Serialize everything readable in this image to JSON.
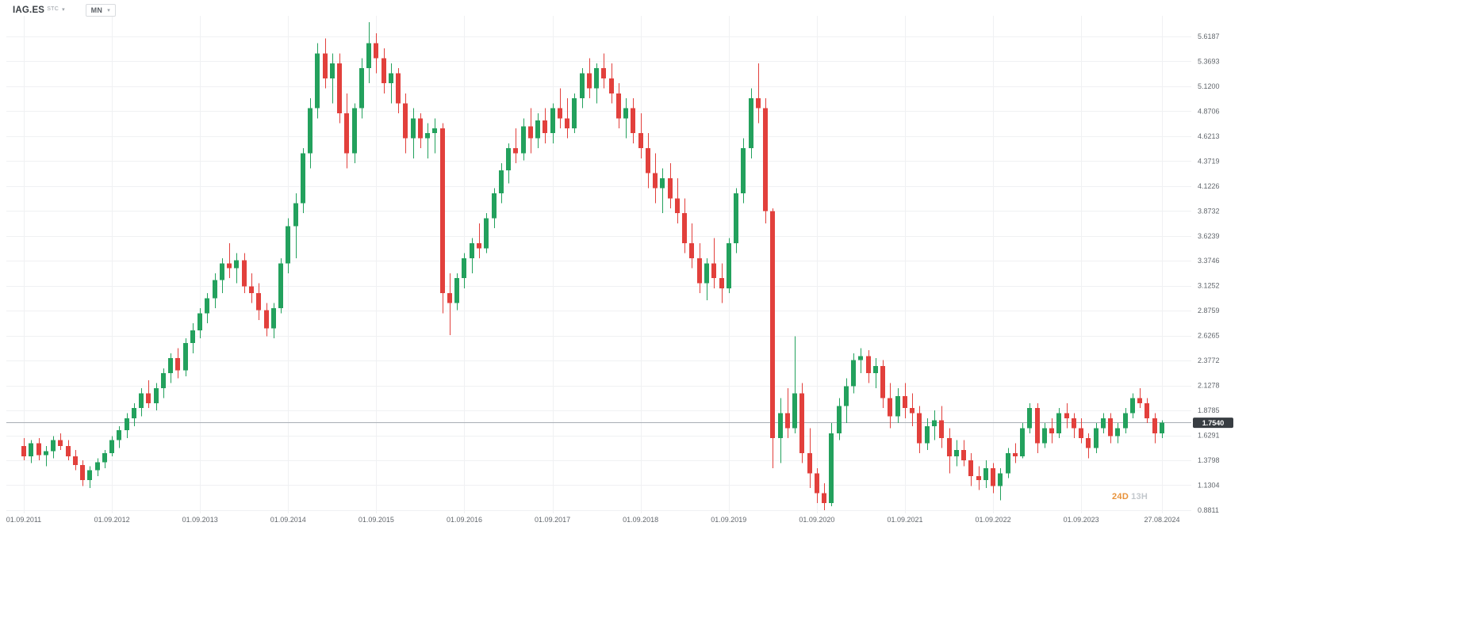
{
  "header": {
    "symbol": "IAG.ES",
    "symbol_suffix": "STC",
    "timeframe": "MN"
  },
  "countdown": {
    "days": "24D",
    "hours": "13H"
  },
  "current_price": {
    "label": "1.7540"
  },
  "colors": {
    "up": "#23a15d",
    "down": "#e2403c",
    "grid": "#f0f1f3",
    "axis_text": "#62676d",
    "current_price_line": "#a9aeb4",
    "badge_bg": "#383d42",
    "badge_text": "#ffffff",
    "countdown_days": "#e8923a",
    "countdown_hours": "#c2c7cc"
  },
  "chart_data": {
    "type": "candlestick",
    "symbol": "IAG.ES",
    "timeframe": "MN",
    "interval": "monthly",
    "range": {
      "start": "01.09.2011",
      "end": "27.08.2024"
    },
    "grid": true,
    "y_ticks": [
      "5.6187",
      "5.3693",
      "5.1200",
      "4.8706",
      "4.6213",
      "4.3719",
      "4.1226",
      "3.8732",
      "3.6239",
      "3.3746",
      "3.1252",
      "2.8759",
      "2.6265",
      "2.3772",
      "2.1278",
      "1.8785",
      "1.6291",
      "1.3798",
      "1.1304",
      "0.8811"
    ],
    "x_ticks": [
      {
        "index": 0,
        "label": "01.09.2011"
      },
      {
        "index": 12,
        "label": "01.09.2012"
      },
      {
        "index": 24,
        "label": "01.09.2013"
      },
      {
        "index": 36,
        "label": "01.09.2014"
      },
      {
        "index": 48,
        "label": "01.09.2015"
      },
      {
        "index": 60,
        "label": "01.09.2016"
      },
      {
        "index": 72,
        "label": "01.09.2017"
      },
      {
        "index": 84,
        "label": "01.09.2018"
      },
      {
        "index": 96,
        "label": "01.09.2019"
      },
      {
        "index": 108,
        "label": "01.09.2020"
      },
      {
        "index": 120,
        "label": "01.09.2021"
      },
      {
        "index": 132,
        "label": "01.09.2022"
      },
      {
        "index": 144,
        "label": "01.09.2023"
      },
      {
        "index": 155,
        "label": "27.08.2024"
      }
    ],
    "ohlc": [
      [
        1.52,
        1.6,
        1.38,
        1.42
      ],
      [
        1.42,
        1.58,
        1.35,
        1.55
      ],
      [
        1.55,
        1.6,
        1.38,
        1.43
      ],
      [
        1.43,
        1.52,
        1.32,
        1.47
      ],
      [
        1.47,
        1.62,
        1.4,
        1.58
      ],
      [
        1.58,
        1.65,
        1.48,
        1.52
      ],
      [
        1.52,
        1.58,
        1.38,
        1.42
      ],
      [
        1.42,
        1.48,
        1.28,
        1.33
      ],
      [
        1.33,
        1.38,
        1.12,
        1.18
      ],
      [
        1.18,
        1.32,
        1.1,
        1.28
      ],
      [
        1.28,
        1.4,
        1.22,
        1.36
      ],
      [
        1.36,
        1.48,
        1.3,
        1.45
      ],
      [
        1.45,
        1.62,
        1.42,
        1.58
      ],
      [
        1.58,
        1.72,
        1.5,
        1.68
      ],
      [
        1.68,
        1.85,
        1.6,
        1.8
      ],
      [
        1.8,
        1.95,
        1.72,
        1.9
      ],
      [
        1.9,
        2.1,
        1.82,
        2.05
      ],
      [
        2.05,
        2.18,
        1.9,
        1.95
      ],
      [
        1.95,
        2.15,
        1.88,
        2.1
      ],
      [
        2.1,
        2.3,
        2.0,
        2.25
      ],
      [
        2.25,
        2.45,
        2.15,
        2.4
      ],
      [
        2.4,
        2.5,
        2.2,
        2.28
      ],
      [
        2.28,
        2.6,
        2.22,
        2.55
      ],
      [
        2.55,
        2.75,
        2.45,
        2.68
      ],
      [
        2.68,
        2.9,
        2.6,
        2.85
      ],
      [
        2.85,
        3.05,
        2.75,
        3.0
      ],
      [
        3.0,
        3.25,
        2.9,
        3.18
      ],
      [
        3.18,
        3.4,
        3.05,
        3.35
      ],
      [
        3.35,
        3.55,
        3.2,
        3.3
      ],
      [
        3.3,
        3.45,
        3.15,
        3.38
      ],
      [
        3.38,
        3.45,
        3.05,
        3.12
      ],
      [
        3.12,
        3.25,
        2.95,
        3.05
      ],
      [
        3.05,
        3.15,
        2.78,
        2.88
      ],
      [
        2.88,
        2.95,
        2.62,
        2.7
      ],
      [
        2.7,
        2.95,
        2.6,
        2.9
      ],
      [
        2.9,
        3.4,
        2.85,
        3.35
      ],
      [
        3.35,
        3.8,
        3.25,
        3.72
      ],
      [
        3.72,
        4.05,
        3.4,
        3.95
      ],
      [
        3.95,
        4.5,
        3.85,
        4.45
      ],
      [
        4.45,
        5.0,
        4.3,
        4.9
      ],
      [
        4.9,
        5.55,
        4.8,
        5.45
      ],
      [
        5.45,
        5.6,
        5.1,
        5.2
      ],
      [
        5.2,
        5.45,
        4.95,
        5.35
      ],
      [
        5.35,
        5.45,
        4.75,
        4.85
      ],
      [
        4.85,
        5.05,
        4.3,
        4.45
      ],
      [
        4.45,
        4.95,
        4.35,
        4.9
      ],
      [
        4.9,
        5.4,
        4.8,
        5.3
      ],
      [
        5.3,
        5.76,
        5.15,
        5.55
      ],
      [
        5.55,
        5.65,
        5.25,
        5.4
      ],
      [
        5.4,
        5.5,
        5.05,
        5.15
      ],
      [
        5.15,
        5.35,
        4.95,
        5.25
      ],
      [
        5.25,
        5.3,
        4.85,
        4.95
      ],
      [
        4.95,
        5.05,
        4.45,
        4.6
      ],
      [
        4.6,
        4.9,
        4.4,
        4.8
      ],
      [
        4.8,
        4.85,
        4.5,
        4.6
      ],
      [
        4.6,
        4.75,
        4.4,
        4.65
      ],
      [
        4.65,
        4.8,
        4.45,
        4.7
      ],
      [
        4.7,
        4.75,
        2.85,
        3.05
      ],
      [
        3.05,
        3.25,
        2.63,
        2.95
      ],
      [
        2.95,
        3.25,
        2.88,
        3.2
      ],
      [
        3.2,
        3.45,
        3.1,
        3.4
      ],
      [
        3.4,
        3.6,
        3.25,
        3.55
      ],
      [
        3.55,
        3.75,
        3.4,
        3.5
      ],
      [
        3.5,
        3.85,
        3.45,
        3.8
      ],
      [
        3.8,
        4.1,
        3.7,
        4.05
      ],
      [
        4.05,
        4.35,
        3.95,
        4.28
      ],
      [
        4.28,
        4.55,
        4.15,
        4.5
      ],
      [
        4.5,
        4.7,
        4.35,
        4.45
      ],
      [
        4.45,
        4.8,
        4.38,
        4.72
      ],
      [
        4.72,
        4.9,
        4.45,
        4.6
      ],
      [
        4.6,
        4.85,
        4.5,
        4.78
      ],
      [
        4.78,
        4.9,
        4.55,
        4.65
      ],
      [
        4.65,
        4.95,
        4.55,
        4.9
      ],
      [
        4.9,
        5.1,
        4.7,
        4.8
      ],
      [
        4.8,
        5.0,
        4.6,
        4.7
      ],
      [
        4.7,
        5.05,
        4.65,
        5.0
      ],
      [
        5.0,
        5.3,
        4.9,
        5.25
      ],
      [
        5.25,
        5.4,
        5.0,
        5.1
      ],
      [
        5.1,
        5.35,
        4.95,
        5.3
      ],
      [
        5.3,
        5.45,
        5.1,
        5.2
      ],
      [
        5.2,
        5.35,
        4.95,
        5.05
      ],
      [
        5.05,
        5.15,
        4.7,
        4.8
      ],
      [
        4.8,
        5.0,
        4.6,
        4.9
      ],
      [
        4.9,
        5.0,
        4.55,
        4.65
      ],
      [
        4.65,
        4.85,
        4.4,
        4.5
      ],
      [
        4.5,
        4.65,
        4.1,
        4.25
      ],
      [
        4.25,
        4.45,
        3.95,
        4.1
      ],
      [
        4.1,
        4.3,
        3.85,
        4.2
      ],
      [
        4.2,
        4.35,
        3.9,
        4.0
      ],
      [
        4.0,
        4.2,
        3.75,
        3.85
      ],
      [
        3.85,
        4.0,
        3.45,
        3.55
      ],
      [
        3.55,
        3.75,
        3.3,
        3.4
      ],
      [
        3.4,
        3.55,
        3.05,
        3.15
      ],
      [
        3.15,
        3.4,
        2.98,
        3.35
      ],
      [
        3.35,
        3.6,
        3.1,
        3.2
      ],
      [
        3.2,
        3.35,
        2.95,
        3.1
      ],
      [
        3.1,
        3.6,
        3.05,
        3.55
      ],
      [
        3.55,
        4.1,
        3.45,
        4.05
      ],
      [
        4.05,
        4.6,
        3.95,
        4.5
      ],
      [
        4.5,
        5.1,
        4.4,
        5.0
      ],
      [
        5.0,
        5.35,
        4.75,
        4.9
      ],
      [
        4.9,
        5.0,
        3.75,
        3.87
      ],
      [
        3.87,
        3.9,
        1.3,
        1.6
      ],
      [
        1.6,
        2.0,
        1.35,
        1.85
      ],
      [
        1.85,
        2.1,
        1.6,
        1.7
      ],
      [
        1.7,
        2.62,
        1.65,
        2.05
      ],
      [
        2.05,
        2.15,
        1.35,
        1.45
      ],
      [
        1.45,
        1.7,
        1.1,
        1.25
      ],
      [
        1.25,
        1.3,
        0.95,
        1.05
      ],
      [
        1.05,
        1.15,
        0.88,
        0.95
      ],
      [
        0.95,
        1.75,
        0.92,
        1.65
      ],
      [
        1.65,
        2.0,
        1.58,
        1.92
      ],
      [
        1.92,
        2.2,
        1.75,
        2.12
      ],
      [
        2.12,
        2.45,
        2.05,
        2.38
      ],
      [
        2.38,
        2.5,
        2.25,
        2.42
      ],
      [
        2.42,
        2.48,
        2.15,
        2.25
      ],
      [
        2.25,
        2.4,
        2.1,
        2.32
      ],
      [
        2.32,
        2.38,
        1.9,
        2.0
      ],
      [
        2.0,
        2.15,
        1.7,
        1.82
      ],
      [
        1.82,
        2.1,
        1.75,
        2.02
      ],
      [
        2.02,
        2.15,
        1.8,
        1.9
      ],
      [
        1.9,
        2.05,
        1.72,
        1.85
      ],
      [
        1.85,
        1.92,
        1.45,
        1.55
      ],
      [
        1.55,
        1.8,
        1.48,
        1.72
      ],
      [
        1.72,
        1.88,
        1.58,
        1.78
      ],
      [
        1.78,
        1.92,
        1.5,
        1.6
      ],
      [
        1.6,
        1.7,
        1.25,
        1.42
      ],
      [
        1.42,
        1.58,
        1.32,
        1.48
      ],
      [
        1.48,
        1.58,
        1.32,
        1.38
      ],
      [
        1.38,
        1.45,
        1.12,
        1.22
      ],
      [
        1.22,
        1.32,
        1.08,
        1.18
      ],
      [
        1.18,
        1.38,
        1.1,
        1.3
      ],
      [
        1.3,
        1.35,
        1.05,
        1.12
      ],
      [
        1.12,
        1.3,
        0.98,
        1.25
      ],
      [
        1.25,
        1.5,
        1.2,
        1.45
      ],
      [
        1.45,
        1.55,
        1.35,
        1.42
      ],
      [
        1.42,
        1.75,
        1.4,
        1.7
      ],
      [
        1.7,
        1.95,
        1.65,
        1.9
      ],
      [
        1.9,
        1.95,
        1.45,
        1.55
      ],
      [
        1.55,
        1.75,
        1.5,
        1.7
      ],
      [
        1.7,
        1.8,
        1.55,
        1.65
      ],
      [
        1.65,
        1.9,
        1.6,
        1.85
      ],
      [
        1.85,
        1.95,
        1.7,
        1.8
      ],
      [
        1.8,
        1.85,
        1.6,
        1.7
      ],
      [
        1.7,
        1.8,
        1.55,
        1.6
      ],
      [
        1.6,
        1.65,
        1.4,
        1.5
      ],
      [
        1.5,
        1.75,
        1.45,
        1.7
      ],
      [
        1.7,
        1.85,
        1.65,
        1.8
      ],
      [
        1.8,
        1.85,
        1.55,
        1.62
      ],
      [
        1.62,
        1.75,
        1.55,
        1.7
      ],
      [
        1.7,
        1.9,
        1.65,
        1.85
      ],
      [
        1.85,
        2.05,
        1.8,
        2.0
      ],
      [
        2.0,
        2.1,
        1.9,
        1.95
      ],
      [
        1.95,
        2.0,
        1.75,
        1.8
      ],
      [
        1.8,
        1.85,
        1.55,
        1.65
      ],
      [
        1.65,
        1.78,
        1.6,
        1.754
      ]
    ]
  }
}
